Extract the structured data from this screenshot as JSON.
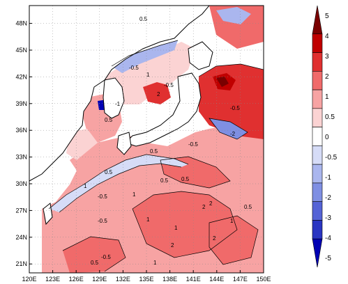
{
  "map": {
    "lat_ticks": [
      "48N",
      "45N",
      "42N",
      "39N",
      "36N",
      "33N",
      "30N",
      "27N",
      "24N",
      "21N"
    ],
    "lon_ticks": [
      "120E",
      "123E",
      "126E",
      "129E",
      "132E",
      "135E",
      "138E",
      "141E",
      "144E",
      "147E",
      "150E"
    ],
    "lon_range": [
      120,
      150
    ],
    "lat_range": [
      20,
      50
    ],
    "colorbar": {
      "labels": [
        "5",
        "4",
        "3",
        "2",
        "1",
        "0.5",
        "0",
        "-0.5",
        "-1",
        "-2",
        "-3",
        "-4",
        "-5"
      ],
      "colors": [
        "#7a0000",
        "#c00000",
        "#e03030",
        "#f06a6a",
        "#f7a3a3",
        "#fbd3d3",
        "#ffffff",
        "#d6dcf7",
        "#aab6ee",
        "#7f8fe3",
        "#5563d6",
        "#2a35c2",
        "#0000b4"
      ]
    },
    "contour_labels": [
      {
        "text": "0.5"
      },
      {
        "text": "-0.5"
      },
      {
        "text": "1"
      },
      {
        "text": "2"
      },
      {
        "text": "-1"
      },
      {
        "text": "0.5"
      },
      {
        "text": "-0.5"
      },
      {
        "text": "-2"
      },
      {
        "text": "-0.5"
      },
      {
        "text": "1"
      },
      {
        "text": "0.5"
      },
      {
        "text": "2"
      },
      {
        "text": "0.5"
      },
      {
        "text": "1"
      },
      {
        "text": "-0.5"
      },
      {
        "text": "-0.5"
      },
      {
        "text": "1"
      },
      {
        "text": "0.5"
      },
      {
        "text": "2"
      },
      {
        "text": "1"
      },
      {
        "text": "0.5"
      },
      {
        "text": "2"
      },
      {
        "text": "1"
      },
      {
        "text": "0.5"
      },
      {
        "text": "-0.5"
      },
      {
        "text": "2"
      },
      {
        "text": "1"
      },
      {
        "text": "-0.5"
      },
      {
        "text": "0.5"
      }
    ]
  }
}
